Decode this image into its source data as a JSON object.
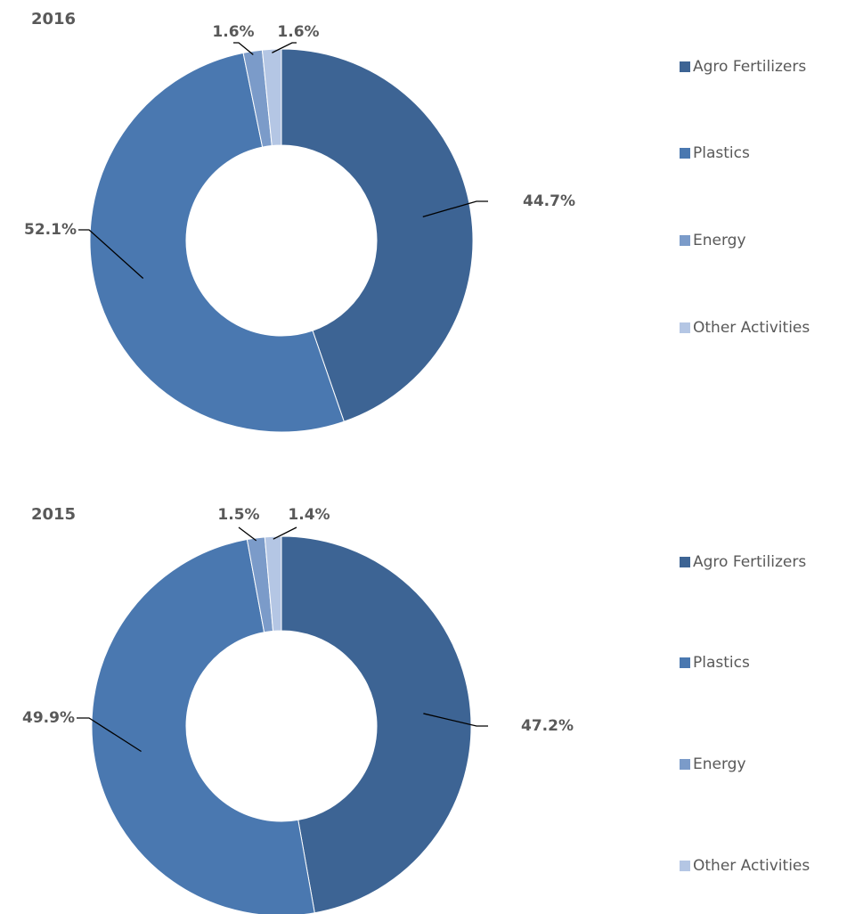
{
  "chart_data": [
    {
      "type": "donut",
      "title": "2016",
      "categories": [
        "Agro Fertilizers",
        "Plastics",
        "Energy",
        "Other Activities"
      ],
      "values": [
        44.7,
        52.1,
        1.6,
        1.6
      ],
      "value_labels": [
        "44.7%",
        "52.1%",
        "1.6%",
        "1.6%"
      ],
      "colors": [
        "#3d6494",
        "#4a78b0",
        "#7b9bc9",
        "#b4c6e4"
      ],
      "legend": "right"
    },
    {
      "type": "donut",
      "title": "2015",
      "categories": [
        "Agro Fertilizers",
        "Plastics",
        "Energy",
        "Other Activities"
      ],
      "values": [
        47.2,
        49.9,
        1.5,
        1.4
      ],
      "value_labels": [
        "47.2%",
        "49.9%",
        "1.5%",
        "1.4%"
      ],
      "colors": [
        "#3d6494",
        "#4a78b0",
        "#7b9bc9",
        "#b4c6e4"
      ],
      "legend": "right"
    }
  ]
}
